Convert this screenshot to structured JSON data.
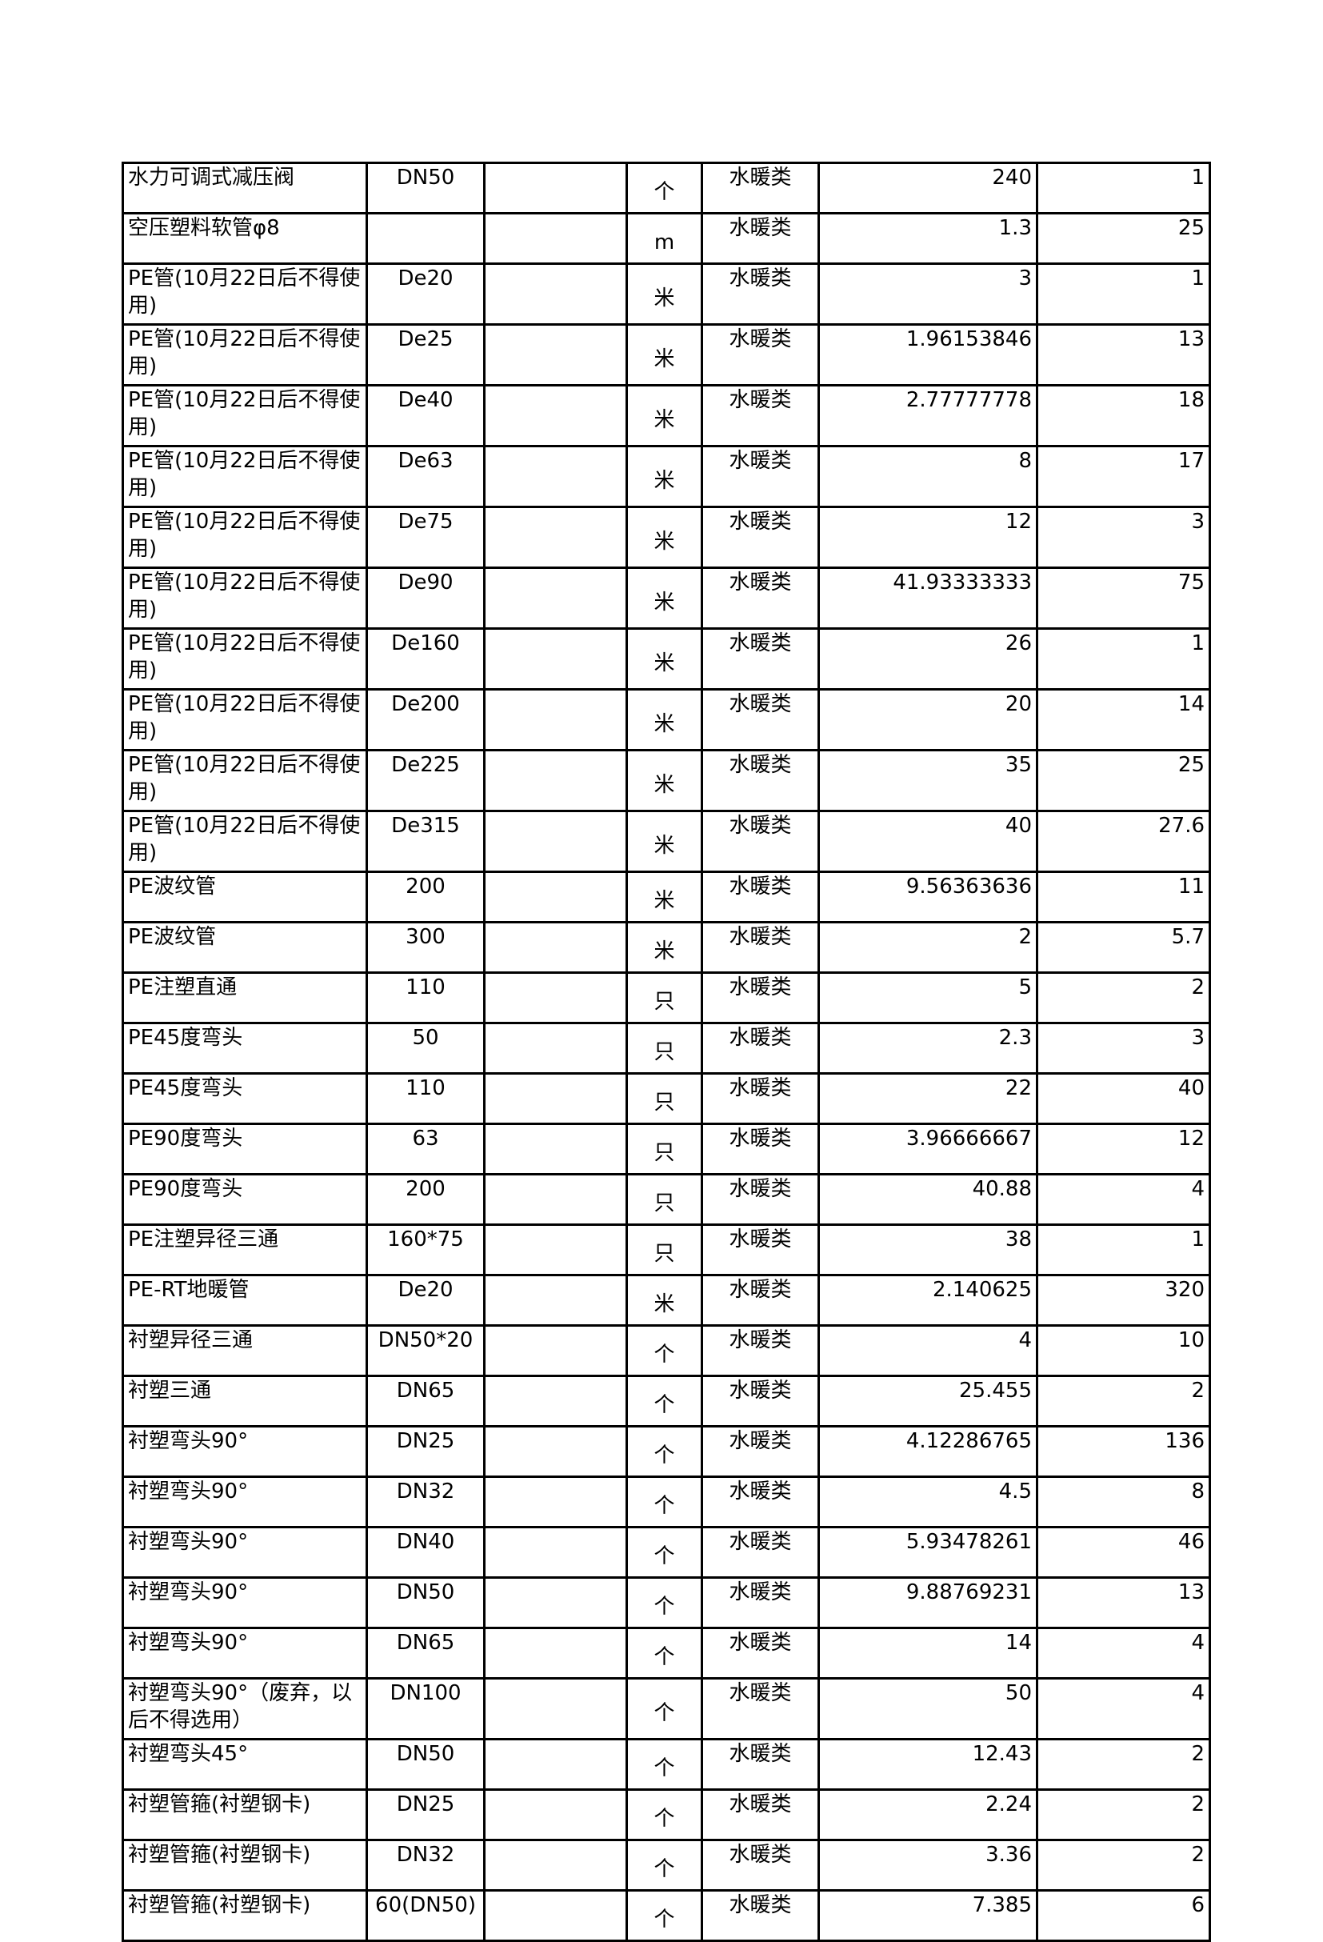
{
  "table": {
    "rows": [
      {
        "name": "水力可调式减压阀",
        "spec": "DN50",
        "unit": "个",
        "category": "水暖类",
        "price": "240",
        "qty": "1"
      },
      {
        "name": "空压塑料软管φ8",
        "spec": "",
        "unit": "m",
        "category": "水暖类",
        "price": "1.3",
        "qty": "25"
      },
      {
        "name": "PE管(10月22日后不得使用)",
        "spec": "De20",
        "unit": "米",
        "category": "水暖类",
        "price": "3",
        "qty": "1"
      },
      {
        "name": "PE管(10月22日后不得使用)",
        "spec": "De25",
        "unit": "米",
        "category": "水暖类",
        "price": "1.96153846",
        "qty": "13"
      },
      {
        "name": "PE管(10月22日后不得使用)",
        "spec": "De40",
        "unit": "米",
        "category": "水暖类",
        "price": "2.77777778",
        "qty": "18"
      },
      {
        "name": "PE管(10月22日后不得使用)",
        "spec": "De63",
        "unit": "米",
        "category": "水暖类",
        "price": "8",
        "qty": "17"
      },
      {
        "name": "PE管(10月22日后不得使用)",
        "spec": "De75",
        "unit": "米",
        "category": "水暖类",
        "price": "12",
        "qty": "3"
      },
      {
        "name": "PE管(10月22日后不得使用)",
        "spec": "De90",
        "unit": "米",
        "category": "水暖类",
        "price": "41.93333333",
        "qty": "75"
      },
      {
        "name": "PE管(10月22日后不得使用)",
        "spec": "De160",
        "unit": "米",
        "category": "水暖类",
        "price": "26",
        "qty": "1"
      },
      {
        "name": "PE管(10月22日后不得使用)",
        "spec": "De200",
        "unit": "米",
        "category": "水暖类",
        "price": "20",
        "qty": "14"
      },
      {
        "name": "PE管(10月22日后不得使用)",
        "spec": "De225",
        "unit": "米",
        "category": "水暖类",
        "price": "35",
        "qty": "25"
      },
      {
        "name": "PE管(10月22日后不得使用)",
        "spec": "De315",
        "unit": "米",
        "category": "水暖类",
        "price": "40",
        "qty": "27.6"
      },
      {
        "name": "PE波纹管",
        "spec": "200",
        "unit": "米",
        "category": "水暖类",
        "price": "9.56363636",
        "qty": "11"
      },
      {
        "name": "PE波纹管",
        "spec": "300",
        "unit": "米",
        "category": "水暖类",
        "price": "2",
        "qty": "5.7"
      },
      {
        "name": "PE注塑直通",
        "spec": "110",
        "unit": "只",
        "category": "水暖类",
        "price": "5",
        "qty": "2"
      },
      {
        "name": "PE45度弯头",
        "spec": "50",
        "unit": "只",
        "category": "水暖类",
        "price": "2.3",
        "qty": "3"
      },
      {
        "name": "PE45度弯头",
        "spec": "110",
        "unit": "只",
        "category": "水暖类",
        "price": "22",
        "qty": "40"
      },
      {
        "name": "PE90度弯头",
        "spec": "63",
        "unit": "只",
        "category": "水暖类",
        "price": "3.96666667",
        "qty": "12"
      },
      {
        "name": "PE90度弯头",
        "spec": "200",
        "unit": "只",
        "category": "水暖类",
        "price": "40.88",
        "qty": "4"
      },
      {
        "name": "PE注塑异径三通",
        "spec": "160*75",
        "unit": "只",
        "category": "水暖类",
        "price": "38",
        "qty": "1"
      },
      {
        "name": "PE-RT地暖管",
        "spec": "De20",
        "unit": "米",
        "category": "水暖类",
        "price": "2.140625",
        "qty": "320"
      },
      {
        "name": "衬塑异径三通",
        "spec": "DN50*20",
        "unit": "个",
        "category": "水暖类",
        "price": "4",
        "qty": "10"
      },
      {
        "name": "衬塑三通",
        "spec": "DN65",
        "unit": "个",
        "category": "水暖类",
        "price": "25.455",
        "qty": "2"
      },
      {
        "name": "衬塑弯头90°",
        "spec": "DN25",
        "unit": "个",
        "category": "水暖类",
        "price": "4.12286765",
        "qty": "136"
      },
      {
        "name": "衬塑弯头90°",
        "spec": "DN32",
        "unit": "个",
        "category": "水暖类",
        "price": "4.5",
        "qty": "8"
      },
      {
        "name": "衬塑弯头90°",
        "spec": "DN40",
        "unit": "个",
        "category": "水暖类",
        "price": "5.93478261",
        "qty": "46"
      },
      {
        "name": "衬塑弯头90°",
        "spec": "DN50",
        "unit": "个",
        "category": "水暖类",
        "price": "9.88769231",
        "qty": "13"
      },
      {
        "name": "衬塑弯头90°",
        "spec": "DN65",
        "unit": "个",
        "category": "水暖类",
        "price": "14",
        "qty": "4"
      },
      {
        "name": "衬塑弯头90°（废弃，以后不得选用）",
        "spec": "DN100",
        "unit": "个",
        "category": "水暖类",
        "price": "50",
        "qty": "4"
      },
      {
        "name": "衬塑弯头45°",
        "spec": "DN50",
        "unit": "个",
        "category": "水暖类",
        "price": "12.43",
        "qty": "2"
      },
      {
        "name": "衬塑管箍(衬塑钢卡)",
        "spec": "DN25",
        "unit": "个",
        "category": "水暖类",
        "price": "2.24",
        "qty": "2"
      },
      {
        "name": "衬塑管箍(衬塑钢卡)",
        "spec": "DN32",
        "unit": "个",
        "category": "水暖类",
        "price": "3.36",
        "qty": "2"
      },
      {
        "name": "衬塑管箍(衬塑钢卡)",
        "spec": "60(DN50)",
        "unit": "个",
        "category": "水暖类",
        "price": "7.385",
        "qty": "6"
      }
    ]
  }
}
